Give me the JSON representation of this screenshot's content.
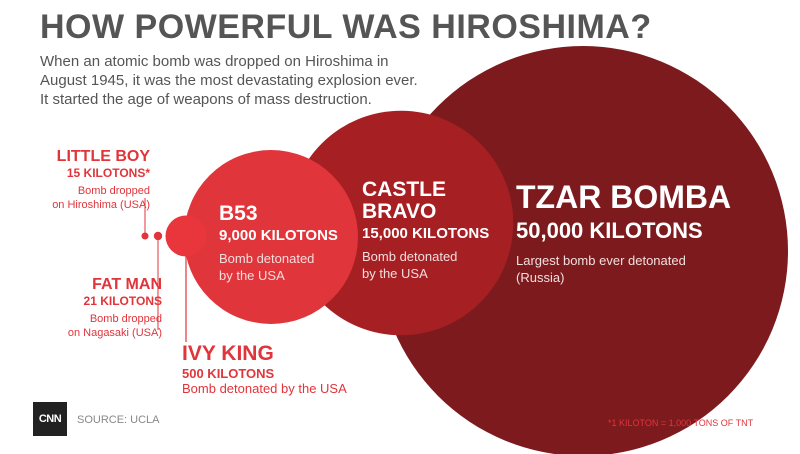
{
  "header": {
    "title": "HOW POWERFUL WAS HIROSHIMA?",
    "intro": [
      "When an atomic bomb was dropped on Hiroshima in",
      "August 1945, it was the most devastating explosion ever.",
      "It started the age of weapons of mass destruction."
    ]
  },
  "chart_data": {
    "type": "bubble",
    "unit": "KILOTONS",
    "series": [
      {
        "name": "LITTLE BOY",
        "value": 15,
        "yield_label": "15 KILOTONS*",
        "description": [
          "Bomb dropped",
          "on Hiroshima (USA)"
        ]
      },
      {
        "name": "FAT MAN",
        "value": 21,
        "yield_label": "21 KILOTONS",
        "description": [
          "Bomb dropped",
          "on Nagasaki (USA)"
        ]
      },
      {
        "name": "IVY KING",
        "value": 500,
        "yield_label": "500 KILOTONS",
        "description": [
          "Bomb detonated by the USA"
        ]
      },
      {
        "name": "B53",
        "value": 9000,
        "yield_label": "9,000 KILOTONS",
        "description": [
          "Bomb detonated",
          "by the USA"
        ]
      },
      {
        "name": "CASTLE BRAVO",
        "name_lines": [
          "CASTLE",
          "BRAVO"
        ],
        "value": 15000,
        "yield_label": "15,000 KILOTONS",
        "description": [
          "Bomb detonated",
          "by the USA"
        ]
      },
      {
        "name": "TZAR BOMBA",
        "value": 50000,
        "yield_label": "50,000 KILOTONS",
        "description": [
          "Largest bomb ever detonated",
          "(Russia)"
        ]
      }
    ]
  },
  "colors": {
    "tzar": "#7c1a1e",
    "castle": "#a51f23",
    "b53": "#e0353b",
    "ivy": "#e8363c",
    "small": "#e0353b",
    "accent_text": "#e0353b"
  },
  "footer": {
    "logo": "CNN",
    "source": "SOURCE: UCLA",
    "footnote": "*1 KILOTON = 1,000 TONS OF TNT"
  }
}
